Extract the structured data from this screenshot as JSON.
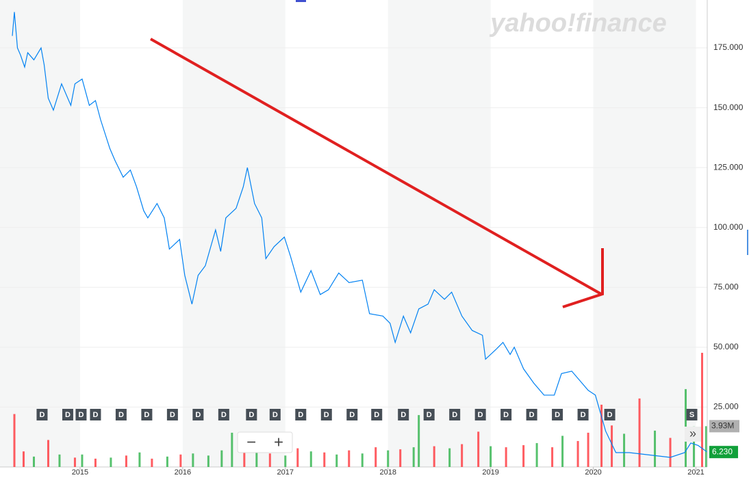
{
  "chart_data": {
    "type": "line",
    "watermark": "yahoo!finance",
    "controls": [
      "−",
      "+",
      "»"
    ],
    "xlim": [
      2014.22,
      2021.11
    ],
    "xticks": [
      2015,
      2016,
      2017,
      2018,
      2019,
      2020,
      2021
    ],
    "ylim": [
      0,
      195
    ],
    "yticks": [
      {
        "value": 25,
        "label": "25.000"
      },
      {
        "value": 50,
        "label": "50.000"
      },
      {
        "value": 75,
        "label": "75.000"
      },
      {
        "value": 100,
        "label": "100.000"
      },
      {
        "value": 125,
        "label": "125.000"
      },
      {
        "value": 150,
        "label": "150.000"
      },
      {
        "value": 175,
        "label": "175.000"
      }
    ],
    "grid": true,
    "price": {
      "color": "#0081f2",
      "x": [
        2014.34,
        2014.36,
        2014.39,
        2014.42,
        2014.46,
        2014.49,
        2014.55,
        2014.62,
        2014.65,
        2014.69,
        2014.74,
        2014.82,
        2014.91,
        2014.95,
        2015.02,
        2015.09,
        2015.15,
        2015.2,
        2015.29,
        2015.34,
        2015.42,
        2015.49,
        2015.55,
        2015.62,
        2015.66,
        2015.75,
        2015.82,
        2015.87,
        2015.97,
        2016.02,
        2016.09,
        2016.15,
        2016.22,
        2016.32,
        2016.37,
        2016.42,
        2016.52,
        2016.59,
        2016.63,
        2016.7,
        2016.77,
        2016.81,
        2016.89,
        2016.99,
        2017.05,
        2017.15,
        2017.25,
        2017.34,
        2017.42,
        2017.52,
        2017.62,
        2017.75,
        2017.82,
        2017.95,
        2018.02,
        2018.07,
        2018.15,
        2018.22,
        2018.3,
        2018.39,
        2018.45,
        2018.55,
        2018.62,
        2018.72,
        2018.82,
        2018.92,
        2018.95,
        2019.05,
        2019.12,
        2019.19,
        2019.23,
        2019.32,
        2019.42,
        2019.52,
        2019.62,
        2019.69,
        2019.79,
        2019.87,
        2019.95,
        2020.02,
        2020.12,
        2020.22,
        2020.35,
        2020.55,
        2020.75,
        2020.89,
        2020.95,
        2021.02,
        2021.11
      ],
      "values": [
        180,
        190,
        175,
        172,
        167,
        173,
        170,
        175,
        168,
        154,
        149,
        160,
        151,
        160,
        162,
        151,
        153,
        145,
        133,
        128,
        121,
        124,
        117,
        107,
        104,
        110,
        104,
        91,
        95,
        80,
        68,
        80,
        84,
        99,
        90,
        104,
        108,
        117,
        125,
        110,
        104,
        87,
        92,
        96,
        88,
        73,
        82,
        72,
        74,
        81,
        77,
        78,
        64,
        63,
        60,
        52,
        63,
        56,
        66,
        68,
        74,
        70,
        73,
        63,
        57,
        55,
        45,
        49,
        52,
        47,
        50,
        41,
        35,
        30,
        30,
        39,
        40,
        36,
        32,
        30,
        15,
        6,
        6,
        5,
        4,
        6,
        10,
        9,
        6.23
      ]
    },
    "current_price": {
      "value": 6.23,
      "label": "6.230"
    },
    "volume_lim": [
      0,
      45
    ],
    "current_volume": {
      "value": 3.93,
      "label": "3.93M"
    },
    "volume": {
      "x": [
        2014.36,
        2014.45,
        2014.55,
        2014.69,
        2014.8,
        2014.95,
        2015.02,
        2015.15,
        2015.3,
        2015.45,
        2015.58,
        2015.7,
        2015.85,
        2015.98,
        2016.1,
        2016.25,
        2016.38,
        2016.48,
        2016.6,
        2016.72,
        2016.85,
        2017.0,
        2017.12,
        2017.25,
        2017.38,
        2017.5,
        2017.62,
        2017.75,
        2017.88,
        2018.0,
        2018.12,
        2018.25,
        2018.3,
        2018.45,
        2018.6,
        2018.72,
        2018.88,
        2019.0,
        2019.15,
        2019.32,
        2019.45,
        2019.6,
        2019.7,
        2019.85,
        2019.95,
        2020.08,
        2020.18,
        2020.3,
        2020.45,
        2020.6,
        2020.75,
        2020.9,
        2020.98,
        2021.06,
        2021.1
      ],
      "values": [
        5.1,
        1.5,
        1.0,
        2.6,
        1.2,
        0.9,
        1.2,
        0.8,
        0.9,
        1.1,
        1.4,
        0.8,
        1.0,
        1.2,
        1.3,
        1.1,
        1.6,
        3.3,
        2.0,
        1.5,
        1.3,
        1.1,
        1.8,
        1.5,
        1.4,
        1.2,
        1.6,
        1.3,
        1.9,
        1.6,
        1.7,
        1.9,
        5.0,
        2.0,
        1.8,
        2.2,
        3.4,
        2.0,
        1.9,
        2.1,
        2.3,
        1.9,
        3.0,
        2.5,
        3.3,
        6.0,
        4.0,
        3.2,
        6.6,
        3.5,
        2.8,
        7.5,
        3.9,
        11.0,
        3.93
      ],
      "colors": [
        "#ff333a",
        "#ff333a",
        "#2db34a",
        "#ff333a",
        "#2db34a",
        "#ff333a",
        "#2db34a",
        "#ff333a",
        "#2db34a",
        "#ff333a",
        "#2db34a",
        "#ff333a",
        "#2db34a",
        "#ff333a",
        "#2db34a",
        "#2db34a",
        "#2db34a",
        "#2db34a",
        "#ff333a",
        "#2db34a",
        "#ff333a",
        "#2db34a",
        "#ff333a",
        "#2db34a",
        "#ff333a",
        "#2db34a",
        "#ff333a",
        "#2db34a",
        "#ff333a",
        "#2db34a",
        "#ff333a",
        "#2db34a",
        "#2db34a",
        "#ff333a",
        "#2db34a",
        "#ff333a",
        "#ff333a",
        "#2db34a",
        "#ff333a",
        "#ff333a",
        "#2db34a",
        "#ff333a",
        "#2db34a",
        "#ff333a",
        "#ff333a",
        "#ff333a",
        "#ff333a",
        "#2db34a",
        "#ff333a",
        "#2db34a",
        "#ff333a",
        "#2db34a",
        "#2db34a",
        "#ff333a",
        "#2db34a"
      ]
    },
    "events": [
      {
        "x": 2014.63,
        "label": "D"
      },
      {
        "x": 2014.88,
        "label": "D"
      },
      {
        "x": 2015.01,
        "label": "D"
      },
      {
        "x": 2015.15,
        "label": "D"
      },
      {
        "x": 2015.4,
        "label": "D"
      },
      {
        "x": 2015.65,
        "label": "D"
      },
      {
        "x": 2015.9,
        "label": "D"
      },
      {
        "x": 2016.15,
        "label": "D"
      },
      {
        "x": 2016.4,
        "label": "D"
      },
      {
        "x": 2016.67,
        "label": "D"
      },
      {
        "x": 2016.9,
        "label": "D"
      },
      {
        "x": 2017.15,
        "label": "D"
      },
      {
        "x": 2017.4,
        "label": "D"
      },
      {
        "x": 2017.65,
        "label": "D"
      },
      {
        "x": 2017.89,
        "label": "D"
      },
      {
        "x": 2018.15,
        "label": "D"
      },
      {
        "x": 2018.4,
        "label": "D"
      },
      {
        "x": 2018.65,
        "label": "D"
      },
      {
        "x": 2018.9,
        "label": "D"
      },
      {
        "x": 2019.15,
        "label": "D"
      },
      {
        "x": 2019.4,
        "label": "D"
      },
      {
        "x": 2019.65,
        "label": "D"
      },
      {
        "x": 2019.9,
        "label": "D"
      },
      {
        "x": 2020.16,
        "label": "D"
      },
      {
        "x": 2020.96,
        "label": "S"
      }
    ]
  }
}
